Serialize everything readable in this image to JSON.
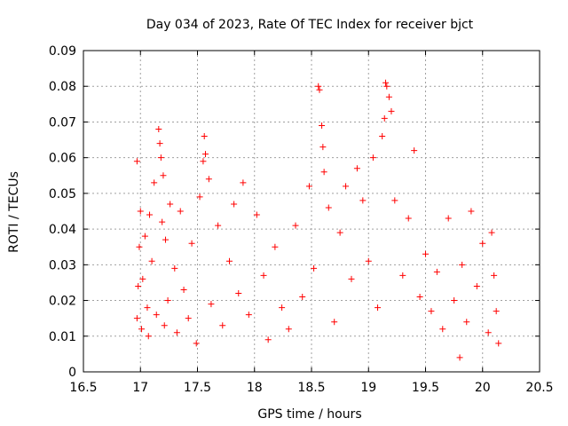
{
  "chart_data": {
    "type": "scatter",
    "title": "Day 034 of 2023, Rate Of TEC Index for receiver bjct",
    "xlabel": "GPS time / hours",
    "ylabel": "ROTI / TECUs",
    "xlim": [
      16.5,
      20.5
    ],
    "ylim": [
      0,
      0.09
    ],
    "x_ticks": [
      16.5,
      17,
      17.5,
      18,
      18.5,
      19,
      19.5,
      20,
      20.5
    ],
    "x_tick_labels": [
      "16.5",
      "17",
      "17.5",
      "18",
      "18.5",
      "19",
      "19.5",
      "20",
      "20.5"
    ],
    "y_ticks": [
      0,
      0.01,
      0.02,
      0.03,
      0.04,
      0.05,
      0.06,
      0.07,
      0.08,
      0.09
    ],
    "y_tick_labels": [
      "0",
      "0.01",
      "0.02",
      "0.03",
      "0.04",
      "0.05",
      "0.06",
      "0.07",
      "0.08",
      "0.09"
    ],
    "grid": true,
    "marker": "+",
    "marker_color": "#ff0000",
    "series": [
      {
        "name": "ROTI",
        "x": [
          16.97,
          16.97,
          16.98,
          16.99,
          17.0,
          17.01,
          17.02,
          17.04,
          17.06,
          17.07,
          17.08,
          17.1,
          17.12,
          17.14,
          17.16,
          17.17,
          17.18,
          17.19,
          17.2,
          17.21,
          17.22,
          17.24,
          17.26,
          17.3,
          17.32,
          17.35,
          17.38,
          17.42,
          17.45,
          17.49,
          17.52,
          17.55,
          17.56,
          17.57,
          17.6,
          17.62,
          17.68,
          17.72,
          17.78,
          17.82,
          17.86,
          17.9,
          17.95,
          18.02,
          18.08,
          18.12,
          18.18,
          18.24,
          18.3,
          18.36,
          18.42,
          18.48,
          18.52,
          18.56,
          18.57,
          18.59,
          18.6,
          18.61,
          18.65,
          18.7,
          18.75,
          18.8,
          18.85,
          18.9,
          18.95,
          19.0,
          19.04,
          19.08,
          19.12,
          19.14,
          19.15,
          19.16,
          19.18,
          19.2,
          19.23,
          19.3,
          19.35,
          19.4,
          19.45,
          19.5,
          19.55,
          19.6,
          19.65,
          19.7,
          19.75,
          19.8,
          19.82,
          19.86,
          19.9,
          19.95,
          20.0,
          20.05,
          20.08,
          20.1,
          20.12,
          20.14
        ],
        "y": [
          0.059,
          0.015,
          0.024,
          0.035,
          0.045,
          0.012,
          0.026,
          0.038,
          0.018,
          0.01,
          0.044,
          0.031,
          0.053,
          0.016,
          0.068,
          0.064,
          0.06,
          0.042,
          0.055,
          0.013,
          0.037,
          0.02,
          0.047,
          0.029,
          0.011,
          0.045,
          0.023,
          0.015,
          0.036,
          0.008,
          0.049,
          0.059,
          0.066,
          0.061,
          0.054,
          0.019,
          0.041,
          0.013,
          0.031,
          0.047,
          0.022,
          0.053,
          0.016,
          0.044,
          0.027,
          0.009,
          0.035,
          0.018,
          0.012,
          0.041,
          0.021,
          0.052,
          0.029,
          0.08,
          0.079,
          0.069,
          0.063,
          0.056,
          0.046,
          0.014,
          0.039,
          0.052,
          0.026,
          0.057,
          0.048,
          0.031,
          0.06,
          0.018,
          0.066,
          0.071,
          0.081,
          0.08,
          0.077,
          0.073,
          0.048,
          0.027,
          0.043,
          0.062,
          0.021,
          0.033,
          0.017,
          0.028,
          0.012,
          0.043,
          0.02,
          0.004,
          0.03,
          0.014,
          0.045,
          0.024,
          0.036,
          0.011,
          0.039,
          0.027,
          0.017,
          0.008
        ]
      }
    ]
  }
}
